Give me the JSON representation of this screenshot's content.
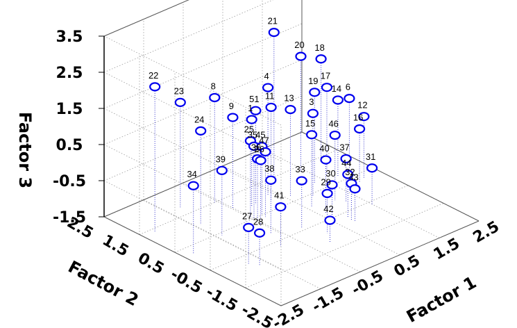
{
  "chart_data": {
    "type": "scatter",
    "subtype": "3d-scatter-with-drop-lines",
    "xlabel": "Factor 1",
    "ylabel": "Factor 2",
    "zlabel": "Factor 3",
    "x_ticks": [
      "-2.5",
      "-1.5",
      "-0.5",
      "0.5",
      "1.5",
      "2.5"
    ],
    "y_ticks": [
      "-2.5",
      "-1.5",
      "-0.5",
      "0.5",
      "1.5",
      "2.5"
    ],
    "z_ticks": [
      "-1.5",
      "-0.5",
      "0.5",
      "1.5",
      "2.5",
      "3.5"
    ],
    "xlim": [
      -2.5,
      2.5
    ],
    "ylim": [
      -2.5,
      2.5
    ],
    "zlim": [
      -1.5,
      3.5
    ],
    "grid": true,
    "marker_color": "#0000ee",
    "dropline_color": "#3333cc",
    "points": [
      {
        "label": "1",
        "x": -0.2,
        "y": 0.9,
        "z": 0.9
      },
      {
        "label": "3",
        "x": 0.9,
        "y": 0.4,
        "z": 0.8
      },
      {
        "label": "4",
        "x": 0.3,
        "y": 1.0,
        "z": 1.5
      },
      {
        "label": "6",
        "x": 2.0,
        "y": 0.6,
        "z": 0.6
      },
      {
        "label": "8",
        "x": -0.6,
        "y": 1.5,
        "z": 1.4
      },
      {
        "label": "9",
        "x": -0.5,
        "y": 1.1,
        "z": 1.0
      },
      {
        "label": "11",
        "x": 0.2,
        "y": 0.8,
        "z": 1.1
      },
      {
        "label": "12",
        "x": 2.1,
        "y": 0.3,
        "z": 0.2
      },
      {
        "label": "13",
        "x": 0.6,
        "y": 0.7,
        "z": 0.9
      },
      {
        "label": "14",
        "x": 1.8,
        "y": 0.7,
        "z": 0.6
      },
      {
        "label": "15",
        "x": 0.6,
        "y": 0.1,
        "z": 0.5
      },
      {
        "label": "16",
        "x": 1.9,
        "y": 0.2,
        "z": 0.0
      },
      {
        "label": "17",
        "x": 1.7,
        "y": 0.9,
        "z": 0.9
      },
      {
        "label": "18",
        "x": 2.0,
        "y": 1.4,
        "z": 1.3
      },
      {
        "label": "19",
        "x": 1.3,
        "y": 0.8,
        "z": 1.0
      },
      {
        "label": "20",
        "x": 1.4,
        "y": 1.3,
        "z": 1.7
      },
      {
        "label": "21",
        "x": 0.9,
        "y": 1.5,
        "z": 2.5
      },
      {
        "label": "22",
        "x": -2.2,
        "y": 1.4,
        "z": 2.5
      },
      {
        "label": "23",
        "x": -1.2,
        "y": 1.8,
        "z": 1.4
      },
      {
        "label": "24",
        "x": -1.4,
        "y": 1.0,
        "z": 1.1
      },
      {
        "label": "25",
        "x": -0.5,
        "y": 0.6,
        "z": 0.6
      },
      {
        "label": "26",
        "x": -0.6,
        "y": 0.2,
        "z": 0.3
      },
      {
        "label": "27",
        "x": -1.8,
        "y": -0.8,
        "z": -0.5
      },
      {
        "label": "28",
        "x": -1.7,
        "y": -1.0,
        "z": -0.6
      },
      {
        "label": "29",
        "x": 0.1,
        "y": -0.9,
        "z": -0.4
      },
      {
        "label": "30",
        "x": 0.4,
        "y": -0.7,
        "z": -0.4
      },
      {
        "label": "31",
        "x": 1.5,
        "y": -0.6,
        "z": -0.5
      },
      {
        "label": "32",
        "x": 0.8,
        "y": -0.8,
        "z": -0.5
      },
      {
        "label": "33",
        "x": -0.1,
        "y": -0.4,
        "z": -0.2
      },
      {
        "label": "34",
        "x": -2.3,
        "y": 0.2,
        "z": 0.4
      },
      {
        "label": "35",
        "x": -0.5,
        "y": 0.5,
        "z": 0.5
      },
      {
        "label": "36",
        "x": -0.5,
        "y": 0.4,
        "z": 0.2
      },
      {
        "label": "37",
        "x": 1.2,
        "y": -0.2,
        "z": -0.3
      },
      {
        "label": "38",
        "x": -0.7,
        "y": -0.2,
        "z": -0.0
      },
      {
        "label": "39",
        "x": -1.4,
        "y": 0.4,
        "z": 0.3
      },
      {
        "label": "40",
        "x": 0.6,
        "y": -0.3,
        "z": 0.0
      },
      {
        "label": "41",
        "x": -0.9,
        "y": -0.7,
        "z": -0.4
      },
      {
        "label": "42",
        "x": -0.1,
        "y": -1.2,
        "z": -0.9
      },
      {
        "label": "43",
        "x": 0.8,
        "y": -0.9,
        "z": -0.6
      },
      {
        "label": "44",
        "x": 0.8,
        "y": -0.7,
        "z": -0.3
      },
      {
        "label": "45",
        "x": -0.3,
        "y": 0.5,
        "z": 0.4
      },
      {
        "label": "46",
        "x": 1.1,
        "y": 0.0,
        "z": 0.3
      },
      {
        "label": "47",
        "x": -0.3,
        "y": 0.4,
        "z": 0.3
      },
      {
        "label": "51",
        "x": -0.1,
        "y": 0.9,
        "z": 1.1
      }
    ]
  }
}
